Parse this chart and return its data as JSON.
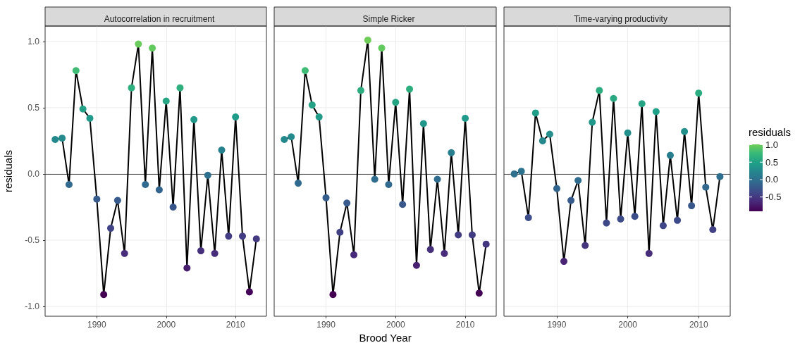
{
  "chart_data": [
    {
      "type": "line",
      "title": "Autocorrelation in recruitment",
      "ylabel": "residuals",
      "x": [
        1984,
        1985,
        1986,
        1987,
        1988,
        1989,
        1990,
        1991,
        1992,
        1993,
        1994,
        1995,
        1996,
        1997,
        1998,
        1999,
        2000,
        2001,
        2002,
        2003,
        2004,
        2005,
        2006,
        2007,
        2008,
        2009,
        2010,
        2011,
        2012,
        2013
      ],
      "series": [
        {
          "color": "#000000",
          "values": [
            0.26,
            0.27,
            -0.08,
            0.78,
            0.49,
            0.42,
            -0.19,
            -0.91,
            -0.41,
            -0.2,
            -0.6,
            0.65,
            0.98,
            -0.08,
            0.95,
            -0.12,
            0.55,
            -0.25,
            0.65,
            -0.71,
            0.41,
            -0.58,
            -0.01,
            -0.6,
            0.18,
            -0.47,
            0.43,
            -0.47,
            -0.89,
            -0.49
          ]
        }
      ],
      "xlim": [
        1982.55,
        2014.45
      ],
      "xticks": [
        1990,
        2000,
        2010
      ],
      "ylim": [
        -1.074,
        1.116
      ],
      "yticks": [
        {
          "value": -1,
          "label": "-1.0"
        },
        {
          "value": -0.5,
          "label": "-0.5"
        },
        {
          "value": 0,
          "label": "0.0"
        },
        {
          "value": 0.5,
          "label": "0.5"
        },
        {
          "value": 1,
          "label": "1.0"
        }
      ],
      "ref_lines": [
        {
          "axis": "y",
          "value": 0,
          "color": "#4d4d4d"
        }
      ],
      "grid": true,
      "marker": "circle"
    },
    {
      "type": "line",
      "title": "Simple Ricker",
      "xlabel": "Brood Year",
      "x": [
        1984,
        1985,
        1986,
        1987,
        1988,
        1989,
        1990,
        1991,
        1992,
        1993,
        1994,
        1995,
        1996,
        1997,
        1998,
        1999,
        2000,
        2001,
        2002,
        2003,
        2004,
        2005,
        2006,
        2007,
        2008,
        2009,
        2010,
        2011,
        2012,
        2013
      ],
      "series": [
        {
          "color": "#000000",
          "values": [
            0.26,
            0.28,
            -0.07,
            0.78,
            0.52,
            0.43,
            -0.18,
            -0.91,
            -0.44,
            -0.22,
            -0.61,
            0.63,
            1.01,
            -0.04,
            0.95,
            -0.08,
            0.54,
            -0.23,
            0.64,
            -0.69,
            0.38,
            -0.57,
            -0.04,
            -0.6,
            0.16,
            -0.46,
            0.42,
            -0.46,
            -0.9,
            -0.53
          ]
        }
      ],
      "xlim": [
        1982.55,
        2014.45
      ],
      "xticks": [
        1990,
        2000,
        2010
      ],
      "ylim": [
        -1.074,
        1.116
      ],
      "yticks": [
        -1,
        -0.5,
        0,
        0.5,
        1
      ],
      "ref_lines": [
        {
          "axis": "y",
          "value": 0,
          "color": "#4d4d4d"
        }
      ],
      "grid": true,
      "marker": "circle",
      "tick_labels": "x"
    },
    {
      "type": "line",
      "title": "Time-varying productivity",
      "clabel": "residuals",
      "x": [
        1984,
        1985,
        1986,
        1987,
        1988,
        1989,
        1990,
        1991,
        1992,
        1993,
        1994,
        1995,
        1996,
        1997,
        1998,
        1999,
        2000,
        2001,
        2002,
        2003,
        2004,
        2005,
        2006,
        2007,
        2008,
        2009,
        2010,
        2011,
        2012,
        2013
      ],
      "series": [
        {
          "color": "#000000",
          "values": [
            0.0,
            0.02,
            -0.33,
            0.46,
            0.25,
            0.3,
            -0.11,
            -0.66,
            -0.2,
            -0.05,
            -0.54,
            0.39,
            0.63,
            -0.37,
            0.57,
            -0.34,
            0.31,
            -0.32,
            0.53,
            -0.6,
            0.47,
            -0.39,
            0.14,
            -0.35,
            0.32,
            -0.24,
            0.61,
            -0.1,
            -0.42,
            -0.02
          ]
        }
      ],
      "xlim": [
        1982.55,
        2014.45
      ],
      "xticks": [
        1990,
        2000,
        2010
      ],
      "ylim": [
        -1.074,
        1.116
      ],
      "yticks": [
        -1,
        -0.5,
        0,
        0.5,
        1
      ],
      "ref_lines": [
        {
          "axis": "y",
          "value": 0,
          "color": "#4d4d4d"
        }
      ],
      "clim": [
        -0.91,
        1.01
      ],
      "cticks": [
        {
          "value": -0.5,
          "label": "-0.5"
        },
        {
          "value": 0,
          "label": "0.0"
        },
        {
          "value": 0.5,
          "label": "0.5"
        },
        {
          "value": 1,
          "label": "1.0"
        }
      ],
      "grid": true,
      "marker": "circle",
      "tick_labels": "x"
    }
  ]
}
